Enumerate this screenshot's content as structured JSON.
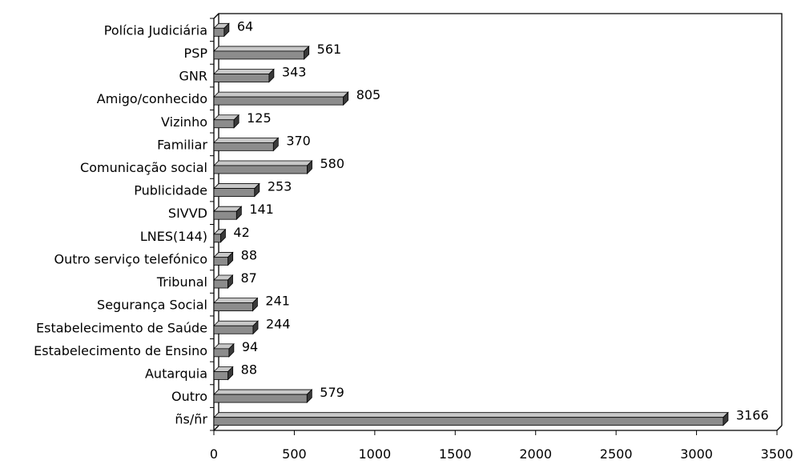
{
  "chart_data": {
    "type": "bar",
    "orientation": "horizontal",
    "style": "3d",
    "categories": [
      "Polícia Judiciária",
      "PSP",
      "GNR",
      "Amigo/conhecido",
      "Vizinho",
      "Familiar",
      "Comunicação social",
      "Publicidade",
      "SIVVD",
      "LNES(144)",
      "Outro serviço telefónico",
      "Tribunal",
      "Segurança Social",
      "Estabelecimento de Saúde",
      "Estabelecimento de Ensino",
      "Autarquia",
      "Outro",
      "ñs/ñr"
    ],
    "values": [
      64,
      561,
      343,
      805,
      125,
      370,
      580,
      253,
      141,
      42,
      88,
      87,
      241,
      244,
      94,
      88,
      579,
      3166
    ],
    "data_labels": [
      "64",
      "561",
      "343",
      "805",
      "125",
      "370",
      "580",
      "253",
      "141",
      "42",
      "88",
      "87",
      "241",
      "244",
      "94",
      "88",
      "579",
      "3166"
    ],
    "xlim": [
      0,
      3500
    ],
    "xticks": [
      "0",
      "500",
      "1000",
      "1500",
      "2000",
      "2500",
      "3000",
      "3500"
    ],
    "grid": false,
    "legend": "none",
    "title": "",
    "xlabel": "",
    "ylabel": "",
    "colors": {
      "bar_front": "#8c8c8c",
      "bar_top": "#c8c8c8",
      "bar_side": "#3a3a3a",
      "axis": "#000000",
      "background": "#ffffff"
    }
  }
}
